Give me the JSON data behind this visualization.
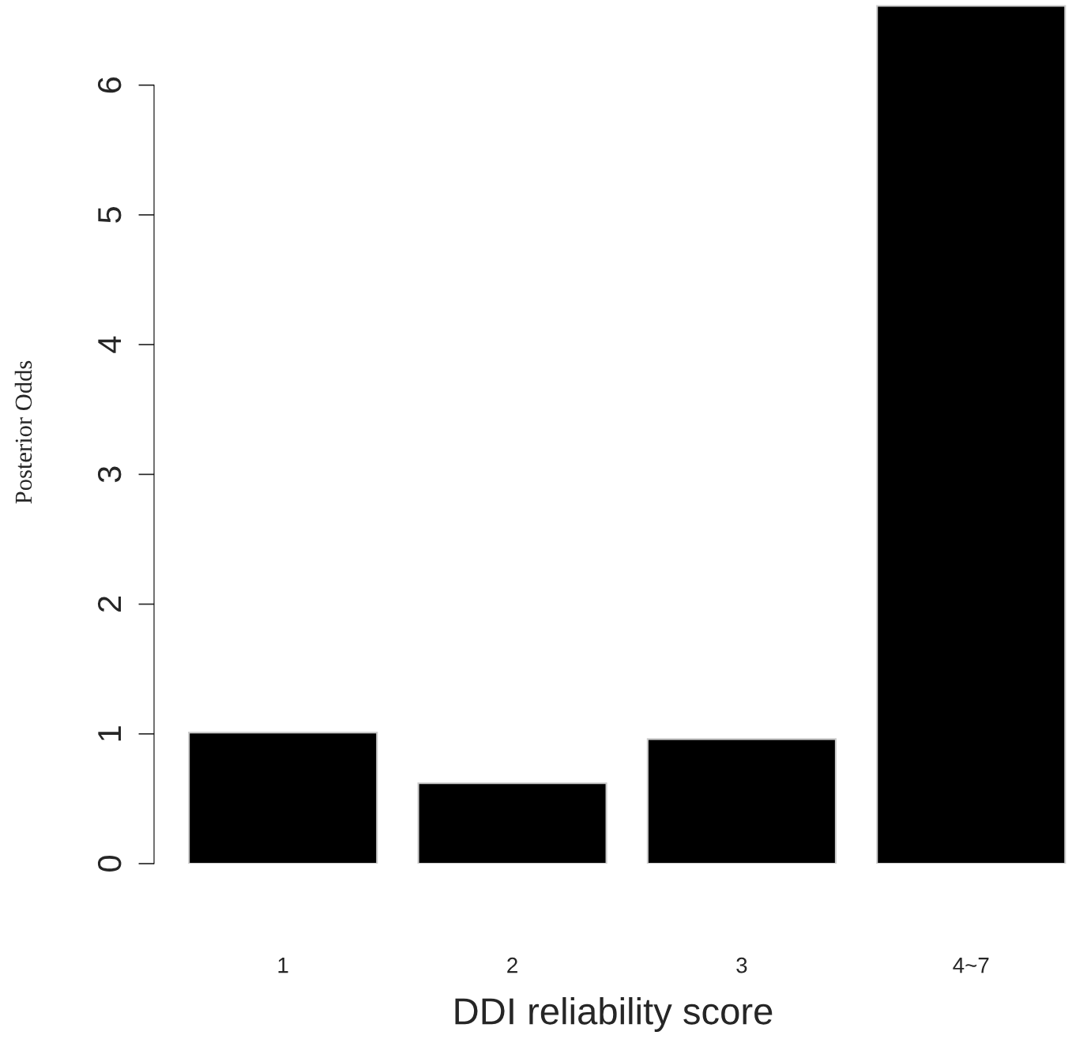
{
  "chart_data": {
    "type": "bar",
    "xlabel": "DDI reliability score",
    "ylabel": "Posterior Odds",
    "categories": [
      "1",
      "2",
      "3",
      "4~7"
    ],
    "values": [
      1.01,
      0.62,
      0.96,
      6.61
    ],
    "color": "#000000",
    "ylim": [
      0,
      6.65
    ],
    "yticks": [
      0,
      1,
      2,
      3,
      4,
      5,
      6
    ],
    "grid": false,
    "legend": false
  }
}
